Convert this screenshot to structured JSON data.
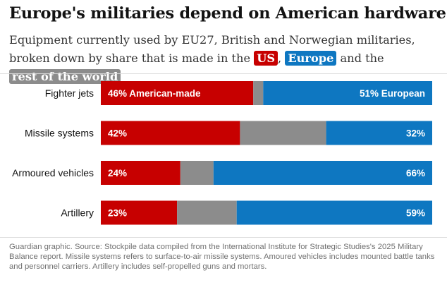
{
  "title": "Europe's militaries depend on American hardware",
  "subtitle": {
    "part1": "Equipment currently used by EU27, British and Norwegian militaries, broken down by share that is made in the ",
    "us": "US",
    "comma": ", ",
    "europe": "Europe",
    "and_the": " and the ",
    "rest": "rest of the world"
  },
  "colors": {
    "us": "#c70000",
    "europe": "#0e77c1",
    "rest": "#8c8c8c"
  },
  "chart_data": {
    "type": "bar",
    "orientation": "horizontal",
    "stacked": true,
    "normalized_to": 100,
    "categories": [
      "Fighter jets",
      "Missile systems",
      "Armoured vehicles",
      "Artillery"
    ],
    "series": [
      {
        "name": "US",
        "values": [
          46,
          42,
          24,
          23
        ],
        "labels": [
          "46% American-made",
          "42%",
          "24%",
          "23%"
        ]
      },
      {
        "name": "Rest of the world",
        "values": [
          3,
          26,
          10,
          18
        ],
        "labels": [
          "",
          "",
          "",
          ""
        ]
      },
      {
        "name": "Europe",
        "values": [
          51,
          32,
          66,
          59
        ],
        "labels": [
          "51% European",
          "32%",
          "66%",
          "59%"
        ]
      }
    ],
    "xlim": [
      0,
      100
    ],
    "title": "Europe's militaries depend on American hardware",
    "xlabel": "",
    "ylabel": ""
  },
  "source": "Guardian graphic. Source: Stockpile data compiled from the International Institute for Strategic Studies's 2025 Military Balance report. Missile systems refers to surface-to-air missile systems. Amoured vehicles includes mounted battle tanks and personnel carriers. Artillery includes self-propelled guns and mortars."
}
